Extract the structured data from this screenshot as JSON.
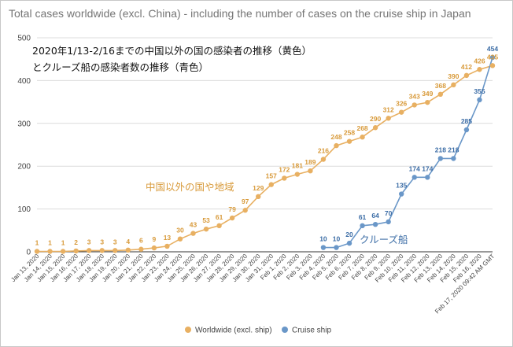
{
  "chart_data": {
    "type": "line",
    "title": "Total cases worldwide (excl. China) - including the number of cases on the cruise ship in Japan",
    "xlabel": "",
    "ylabel": "",
    "ylim": [
      0,
      500
    ],
    "yticks": [
      0,
      100,
      200,
      300,
      400,
      500
    ],
    "grid": true,
    "legend_position": "bottom",
    "categories": [
      "Jan 13, 2020",
      "Jan 14, 2020",
      "Jan 15, 2020",
      "Jan 16, 2020",
      "Jan 17, 2020",
      "Jan 18, 2020",
      "Jan 19, 2020",
      "Jan 20, 2020",
      "Jan 21, 2020",
      "Jan 22, 2020",
      "Jan 23, 2020",
      "Jan 24, 2020",
      "Jan 25, 2020",
      "Jan 26, 2020",
      "Jan 27, 2020",
      "Jan 28, 2020",
      "Jan 29, 2020",
      "Jan 30, 2020",
      "Jan 31, 2020",
      "Feb 1, 2020",
      "Feb 2, 2020",
      "Feb 3, 2020",
      "Feb 4, 2020",
      "Feb 5, 2020",
      "Feb 6, 2020",
      "Feb 7, 2020",
      "Feb 8, 2020",
      "Feb 9, 2020",
      "Feb 10, 2020",
      "Feb 11, 2020",
      "Feb 12, 2020",
      "Feb 13, 2020",
      "Feb 14, 2020",
      "Feb 15, 2020",
      "Feb 16, 2020",
      "Feb 17, 2020 09:42 AM GMT"
    ],
    "series": [
      {
        "name": "Worldwide (excl. ship)",
        "color": "#e8b062",
        "values": [
          1,
          1,
          1,
          2,
          3,
          3,
          3,
          4,
          6,
          9,
          13,
          30,
          43,
          53,
          61,
          79,
          97,
          129,
          157,
          172,
          181,
          189,
          216,
          248,
          258,
          268,
          290,
          312,
          326,
          343,
          349,
          368,
          390,
          412,
          426,
          435
        ]
      },
      {
        "name": "Cruise ship",
        "color": "#6a97c8",
        "values": [
          null,
          null,
          null,
          null,
          null,
          null,
          null,
          null,
          null,
          null,
          null,
          null,
          null,
          null,
          null,
          null,
          null,
          null,
          null,
          null,
          null,
          null,
          10,
          10,
          20,
          61,
          64,
          70,
          135,
          174,
          174,
          218,
          218,
          285,
          355,
          454
        ]
      }
    ],
    "annotations": [
      {
        "text": "2020年1/13-2/16までの中国以外の国の感染者の推移（黄色）"
      },
      {
        "text": "とクルーズ船の感染者数の推移（青色）"
      },
      {
        "text": "中国以外の国や地域",
        "color": "#d89a3a"
      },
      {
        "text": "クルーズ船",
        "color": "#3c6da6"
      }
    ]
  }
}
